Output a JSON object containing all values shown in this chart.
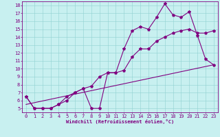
{
  "bg_color": "#c8f0f0",
  "line_color": "#800080",
  "xlabel": "Windchill (Refroidissement éolien,°C)",
  "ylabel_ticks": [
    5,
    6,
    7,
    8,
    9,
    10,
    11,
    12,
    13,
    14,
    15,
    16,
    17,
    18
  ],
  "xlabel_ticks": [
    0,
    1,
    2,
    3,
    4,
    5,
    6,
    7,
    8,
    9,
    10,
    11,
    12,
    13,
    14,
    15,
    16,
    17,
    18,
    19,
    20,
    21,
    22,
    23
  ],
  "xlim": [
    -0.5,
    23.5
  ],
  "ylim": [
    4.5,
    18.5
  ],
  "series1_x": [
    0,
    1,
    2,
    3,
    4,
    5,
    6,
    7,
    8,
    9,
    10,
    11,
    12,
    13,
    14,
    15,
    16,
    17,
    18,
    19,
    20,
    21,
    22,
    23
  ],
  "series1_y": [
    6.5,
    5.0,
    5.0,
    5.0,
    5.5,
    6.5,
    7.0,
    7.5,
    5.0,
    5.0,
    9.5,
    9.5,
    12.5,
    14.8,
    15.3,
    15.0,
    16.5,
    18.2,
    16.8,
    16.5,
    17.2,
    14.2,
    11.2,
    10.5
  ],
  "series2_x": [
    0,
    1,
    2,
    3,
    4,
    5,
    6,
    7,
    8,
    9,
    10,
    11,
    12,
    13,
    14,
    15,
    16,
    17,
    18,
    19,
    20,
    21,
    22,
    23
  ],
  "series2_y": [
    6.5,
    5.0,
    5.0,
    5.0,
    5.5,
    6.0,
    7.0,
    7.5,
    7.8,
    9.0,
    9.5,
    9.5,
    9.8,
    11.5,
    12.5,
    12.5,
    13.5,
    14.0,
    14.5,
    14.8,
    15.0,
    14.5,
    14.5,
    14.8
  ],
  "series3_x": [
    0,
    23
  ],
  "series3_y": [
    5.5,
    10.5
  ],
  "markersize": 3,
  "linewidth": 0.8,
  "xlabel_fontsize": 5,
  "tick_fontsize": 5,
  "grid_color": "#90d0d0",
  "grid_linewidth": 0.4,
  "spine_color": "#800080",
  "spine_linewidth": 0.6
}
